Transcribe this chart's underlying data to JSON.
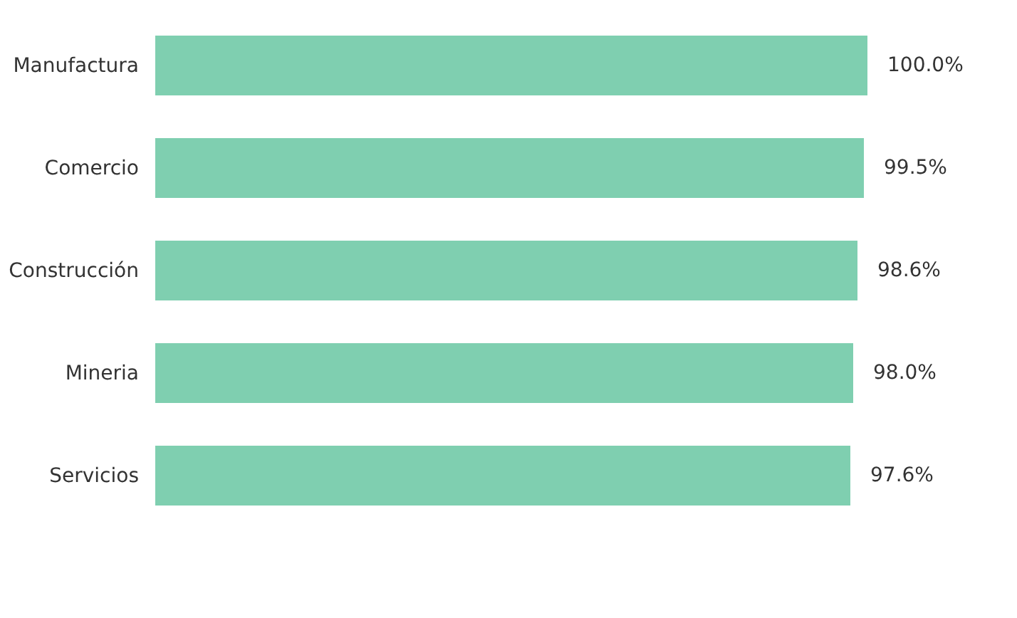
{
  "chart_data": {
    "type": "bar",
    "orientation": "horizontal",
    "categories": [
      "Manufactura",
      "Comercio",
      "Construcción",
      "Mineria",
      "Servicios"
    ],
    "values": [
      100.0,
      99.5,
      98.6,
      98.0,
      97.6
    ],
    "value_labels": [
      "100.0%",
      "99.5%",
      "98.6%",
      "98.0%",
      "97.6%"
    ],
    "color": "#7fcfb0",
    "tick_labels": "y"
  }
}
